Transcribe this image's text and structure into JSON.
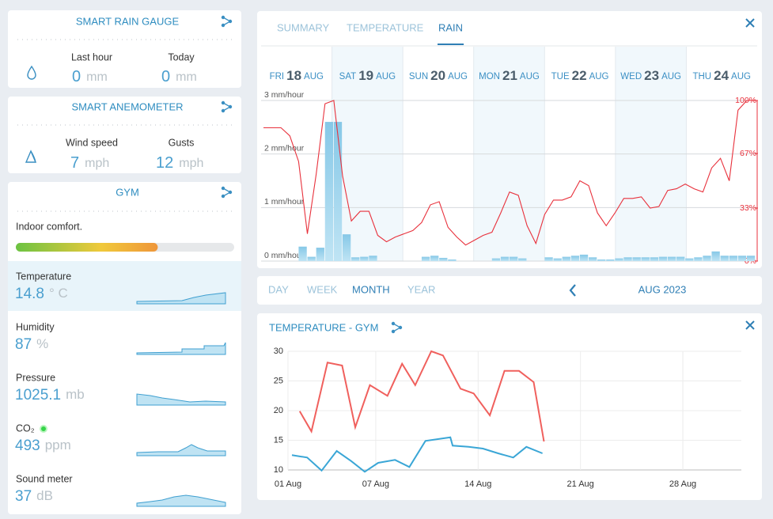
{
  "rain_gauge": {
    "title": "SMART RAIN GAUGE",
    "readings": [
      {
        "label": "Last hour",
        "value": 0,
        "unit": "mm"
      },
      {
        "label": "Today",
        "value": 0,
        "unit": "mm"
      }
    ]
  },
  "anemometer": {
    "title": "SMART ANEMOMETER",
    "readings": [
      {
        "label": "Wind speed",
        "value": 7,
        "unit": "mph"
      },
      {
        "label": "Gusts",
        "value": 12,
        "unit": "mph"
      }
    ]
  },
  "gym": {
    "title": "GYM",
    "comfort_label": "Indoor comfort.",
    "comfort": 65,
    "sensors": [
      {
        "label": "Temperature",
        "value": 14.8,
        "unit": "° C"
      },
      {
        "label": "Humidity",
        "value": 87,
        "unit": "%"
      },
      {
        "label": "Pressure",
        "value": 1025.1,
        "unit": "mb"
      },
      {
        "label": "CO₂",
        "value": 493,
        "unit": "ppm"
      },
      {
        "label": "Sound meter",
        "value": 37,
        "unit": "dB"
      }
    ]
  },
  "tabs": [
    "SUMMARY",
    "TEMPERATURE",
    "RAIN"
  ],
  "active_tab": 2,
  "periods": [
    "DAY",
    "WEEK",
    "MONTH",
    "YEAR"
  ],
  "active_period": 2,
  "period_label": "AUG 2023",
  "chart_data": [
    {
      "type": "bar",
      "days": [
        {
          "weekday": "FRI",
          "day": 18,
          "month": "AUG"
        },
        {
          "weekday": "SAT",
          "day": 19,
          "month": "AUG"
        },
        {
          "weekday": "SUN",
          "day": 20,
          "month": "AUG"
        },
        {
          "weekday": "MON",
          "day": 21,
          "month": "AUG"
        },
        {
          "weekday": "TUE",
          "day": 22,
          "month": "AUG"
        },
        {
          "weekday": "WED",
          "day": 23,
          "month": "AUG"
        },
        {
          "weekday": "THU",
          "day": 24,
          "month": "AUG"
        }
      ],
      "ylim": [
        0,
        3
      ],
      "yticks": [
        {
          "value": 3,
          "label": "3 mm/hour"
        },
        {
          "value": 2,
          "label": "2 mm/hour"
        },
        {
          "value": 1,
          "label": "1 mm/hour"
        },
        {
          "value": 0,
          "label": "0 mm/hour"
        }
      ],
      "y2lim": [
        0,
        100
      ],
      "y2ticks": [
        {
          "value": 100,
          "label": "100%"
        },
        {
          "value": 67,
          "label": "67%"
        },
        {
          "value": 33,
          "label": "33%"
        },
        {
          "value": 0,
          "label": "0%"
        }
      ],
      "grid": true,
      "series": [
        {
          "type": "bar",
          "color": "#8fcdea",
          "values": [
            0,
            0,
            0,
            0,
            0.27,
            0.08,
            0.25,
            2.6,
            2.6,
            0.5,
            0.07,
            0.08,
            0.1,
            0,
            0,
            0,
            0,
            0,
            0.08,
            0.1,
            0.06,
            0.03,
            0,
            0,
            0,
            0,
            0.05,
            0.08,
            0.08,
            0.05,
            0,
            0,
            0.07,
            0.05,
            0.08,
            0.1,
            0.12,
            0.07,
            0.03,
            0.03,
            0.05,
            0.07,
            0.07,
            0.07,
            0.07,
            0.08,
            0.08,
            0.08,
            0.05,
            0.07,
            0.1,
            0.18,
            0.1,
            0.1,
            0.1,
            0.1
          ]
        },
        {
          "type": "line",
          "color": "#e8313c",
          "axis": "y2",
          "values": [
            83,
            83,
            83,
            78,
            62,
            17,
            54,
            98,
            100,
            53,
            25,
            31,
            31,
            16,
            12,
            15,
            17,
            19,
            24,
            35,
            37,
            21,
            15,
            10,
            13,
            16,
            18,
            30,
            43,
            41,
            22,
            11,
            29,
            38,
            38,
            40,
            50,
            47,
            30,
            22,
            30,
            39,
            39,
            40,
            33,
            34,
            44,
            45,
            48,
            45,
            43,
            58,
            64,
            50,
            94,
            100,
            100
          ]
        }
      ]
    },
    {
      "type": "line",
      "title": "TEMPERATURE - GYM",
      "xlim": [
        1,
        32
      ],
      "xticks": [
        {
          "value": 1,
          "label": "01 Aug"
        },
        {
          "value": 7,
          "label": "07 Aug"
        },
        {
          "value": 14,
          "label": "14 Aug"
        },
        {
          "value": 21,
          "label": "21 Aug"
        },
        {
          "value": 28,
          "label": "28 Aug"
        }
      ],
      "ylim": [
        10,
        30
      ],
      "yticks": [
        10,
        15,
        20,
        25,
        30
      ],
      "grid": true,
      "series": [
        {
          "color": "#f0605d",
          "x": [
            1.8,
            2.6,
            3.7,
            4.7,
            5.6,
            6.6,
            7.8,
            8.8,
            9.7,
            10.8,
            11.6,
            12.8,
            13.7,
            14.8,
            15.8,
            16.8,
            17.8,
            18.5
          ],
          "values": [
            19.9,
            16.5,
            28.1,
            27.6,
            17.2,
            24.3,
            22.5,
            27.9,
            24.3,
            30.0,
            29.3,
            23.7,
            22.9,
            19.2,
            26.7,
            26.7,
            24.8,
            14.8
          ]
        },
        {
          "color": "#3aa6d6",
          "x": [
            1.27,
            2.31,
            3.3,
            4.33,
            5.32,
            6.25,
            7.17,
            8.32,
            9.3,
            10.4,
            12.1,
            12.26,
            13.35,
            14.33,
            15.37,
            16.4,
            17.3,
            18.4
          ],
          "values": [
            12.5,
            12.1,
            9.9,
            13.2,
            11.5,
            9.7,
            11.2,
            11.7,
            10.5,
            14.9,
            15.5,
            14.1,
            13.9,
            13.6,
            12.8,
            12.1,
            13.9,
            12.8
          ]
        }
      ]
    }
  ]
}
